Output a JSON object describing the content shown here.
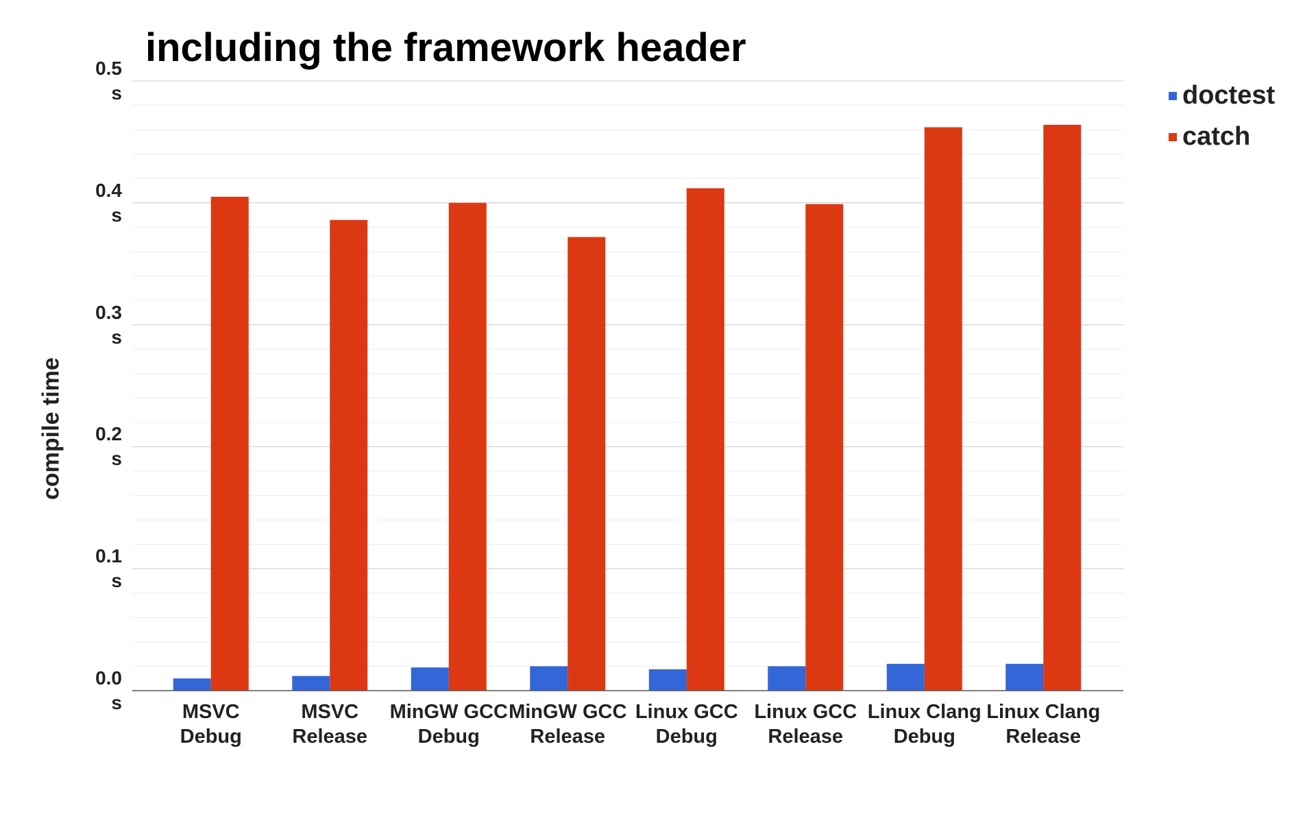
{
  "chart_data": {
    "type": "bar",
    "title": "including the framework header",
    "y_label": "compile time",
    "categories": [
      "MSVC Debug",
      "MSVC Release",
      "MinGW GCC Debug",
      "MinGW GCC Release",
      "Linux GCC Debug",
      "Linux GCC Release",
      "Linux Clang Debug",
      "Linux Clang Release"
    ],
    "series": [
      {
        "name": "doctest",
        "color": "#3366d6",
        "values": [
          0.01,
          0.012,
          0.019,
          0.02,
          0.0175,
          0.02,
          0.022,
          0.022
        ]
      },
      {
        "name": "catch",
        "color": "#dc3912",
        "values": [
          0.405,
          0.386,
          0.4,
          0.372,
          0.412,
          0.399,
          0.462,
          0.464
        ]
      }
    ],
    "ylim": [
      0,
      0.5
    ],
    "yticks": [
      {
        "value": 0,
        "label": "0.0 s"
      },
      {
        "value": 0.1,
        "label": "0.1 s"
      },
      {
        "value": 0.2,
        "label": "0.2 s"
      },
      {
        "value": 0.3,
        "label": "0.3 s"
      },
      {
        "value": 0.4,
        "label": "0.4 s"
      },
      {
        "value": 0.5,
        "label": "0.5 s"
      }
    ],
    "grid": true,
    "legend": "top-right"
  }
}
